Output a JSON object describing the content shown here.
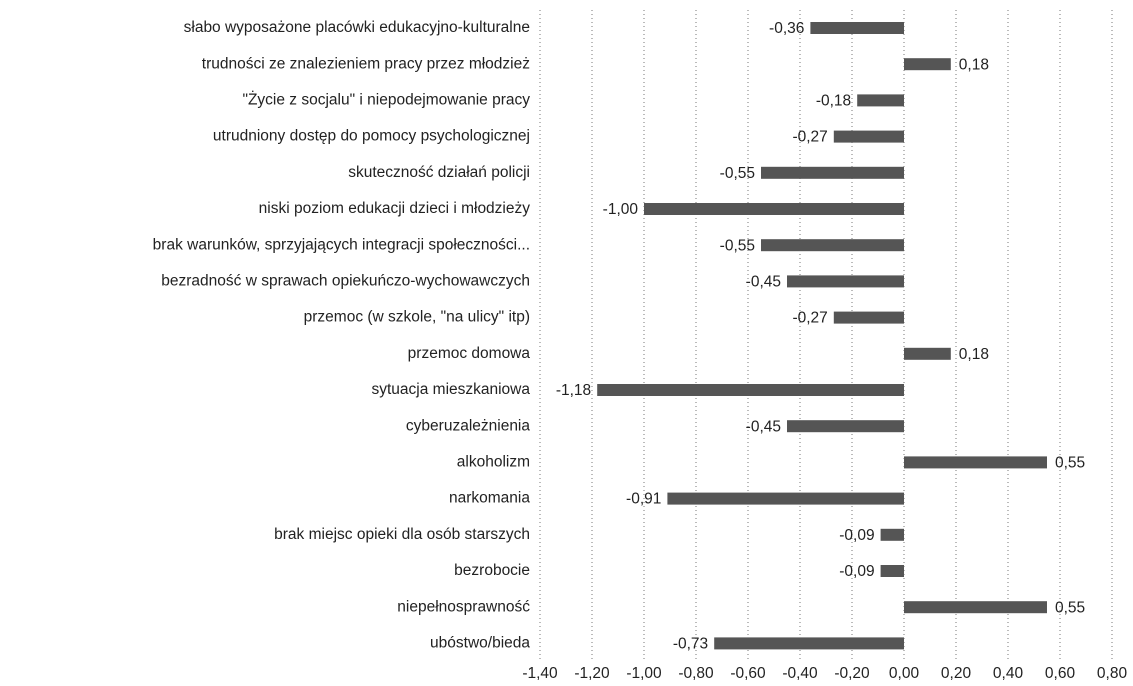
{
  "chart_data": {
    "type": "barh",
    "categories": [
      "słabo wyposażone placówki edukacyjno-kulturalne",
      "trudności ze znalezieniem pracy przez młodzież",
      "\"Życie z socjalu\" i niepodejmowanie pracy",
      "utrudniony dostęp do pomocy psychologicznej",
      "skuteczność działań policji",
      "niski poziom edukacji dzieci i młodzieży",
      "brak warunków, sprzyjających integracji społeczności...",
      "bezradność w sprawach opiekuńczo-wychowawczych",
      "przemoc (w szkole, \"na ulicy\" itp)",
      "przemoc domowa",
      "sytuacja mieszkaniowa",
      "cyberuzależnienia",
      "alkoholizm",
      "narkomania",
      "brak miejsc opieki dla osób starszych",
      "bezrobocie",
      "niepełnosprawność",
      "ubóstwo/bieda"
    ],
    "values": [
      -0.36,
      0.18,
      -0.18,
      -0.27,
      -0.55,
      -1.0,
      -0.55,
      -0.45,
      -0.27,
      0.18,
      -1.18,
      -0.45,
      0.55,
      -0.91,
      -0.09,
      -0.09,
      0.55,
      -0.73
    ],
    "value_labels": [
      "-0,36",
      "0,18",
      "-0,18",
      "-0,27",
      "-0,55",
      "-1,00",
      "-0,55",
      "-0,45",
      "-0,27",
      "0,18",
      "-1,18",
      "-0,45",
      "0,55",
      "-0,91",
      "-0,09",
      "-0,09",
      "0,55",
      "-0,73"
    ],
    "color": "#555555",
    "xlim": [
      -1.4,
      0.8
    ],
    "xticks": [
      {
        "value": -1.4,
        "label": "-1,40"
      },
      {
        "value": -1.2,
        "label": "-1,20"
      },
      {
        "value": -1.0,
        "label": "-1,00"
      },
      {
        "value": -0.8,
        "label": "-0,80"
      },
      {
        "value": -0.6,
        "label": "-0,60"
      },
      {
        "value": -0.4,
        "label": "-0,40"
      },
      {
        "value": -0.2,
        "label": "-0,20"
      },
      {
        "value": 0,
        "label": "0,00"
      },
      {
        "value": 0.2,
        "label": "0,20"
      },
      {
        "value": 0.4,
        "label": "0,40"
      },
      {
        "value": 0.6,
        "label": "0,60"
      },
      {
        "value": 0.8,
        "label": "0,80"
      }
    ],
    "grid": true
  }
}
